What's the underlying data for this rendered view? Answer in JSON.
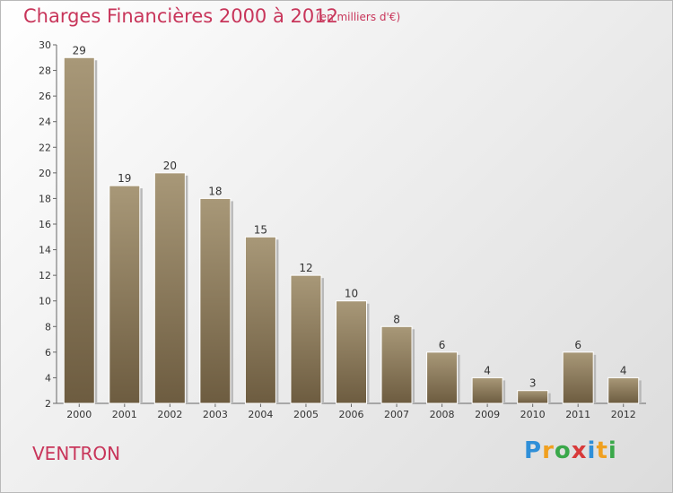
{
  "chart_data": {
    "type": "bar",
    "title": "Charges Financières 2000 à 2012",
    "subtitle": "(en milliers d'€)",
    "place": "VENTRON",
    "categories": [
      "2000",
      "2001",
      "2002",
      "2003",
      "2004",
      "2005",
      "2006",
      "2007",
      "2008",
      "2009",
      "2010",
      "2011",
      "2012"
    ],
    "values": [
      29,
      19,
      20,
      18,
      15,
      12,
      10,
      8,
      6,
      4,
      3,
      6,
      4
    ],
    "ylim": [
      2,
      30
    ],
    "yticks": [
      2,
      4,
      6,
      8,
      10,
      12,
      14,
      16,
      18,
      20,
      22,
      24,
      26,
      28,
      30
    ],
    "grid": false,
    "colors": {
      "bar_light": "#a89878",
      "bar_dark": "#6d5c40",
      "title": "#c8355a"
    }
  },
  "logo": {
    "letters": [
      "P",
      "r",
      "o",
      "x",
      "i",
      "t",
      "i"
    ],
    "colors": [
      "#2f8fd8",
      "#f0a020",
      "#3aa84a",
      "#d83a3a",
      "#2f8fd8",
      "#f0a020",
      "#3aa84a"
    ]
  }
}
